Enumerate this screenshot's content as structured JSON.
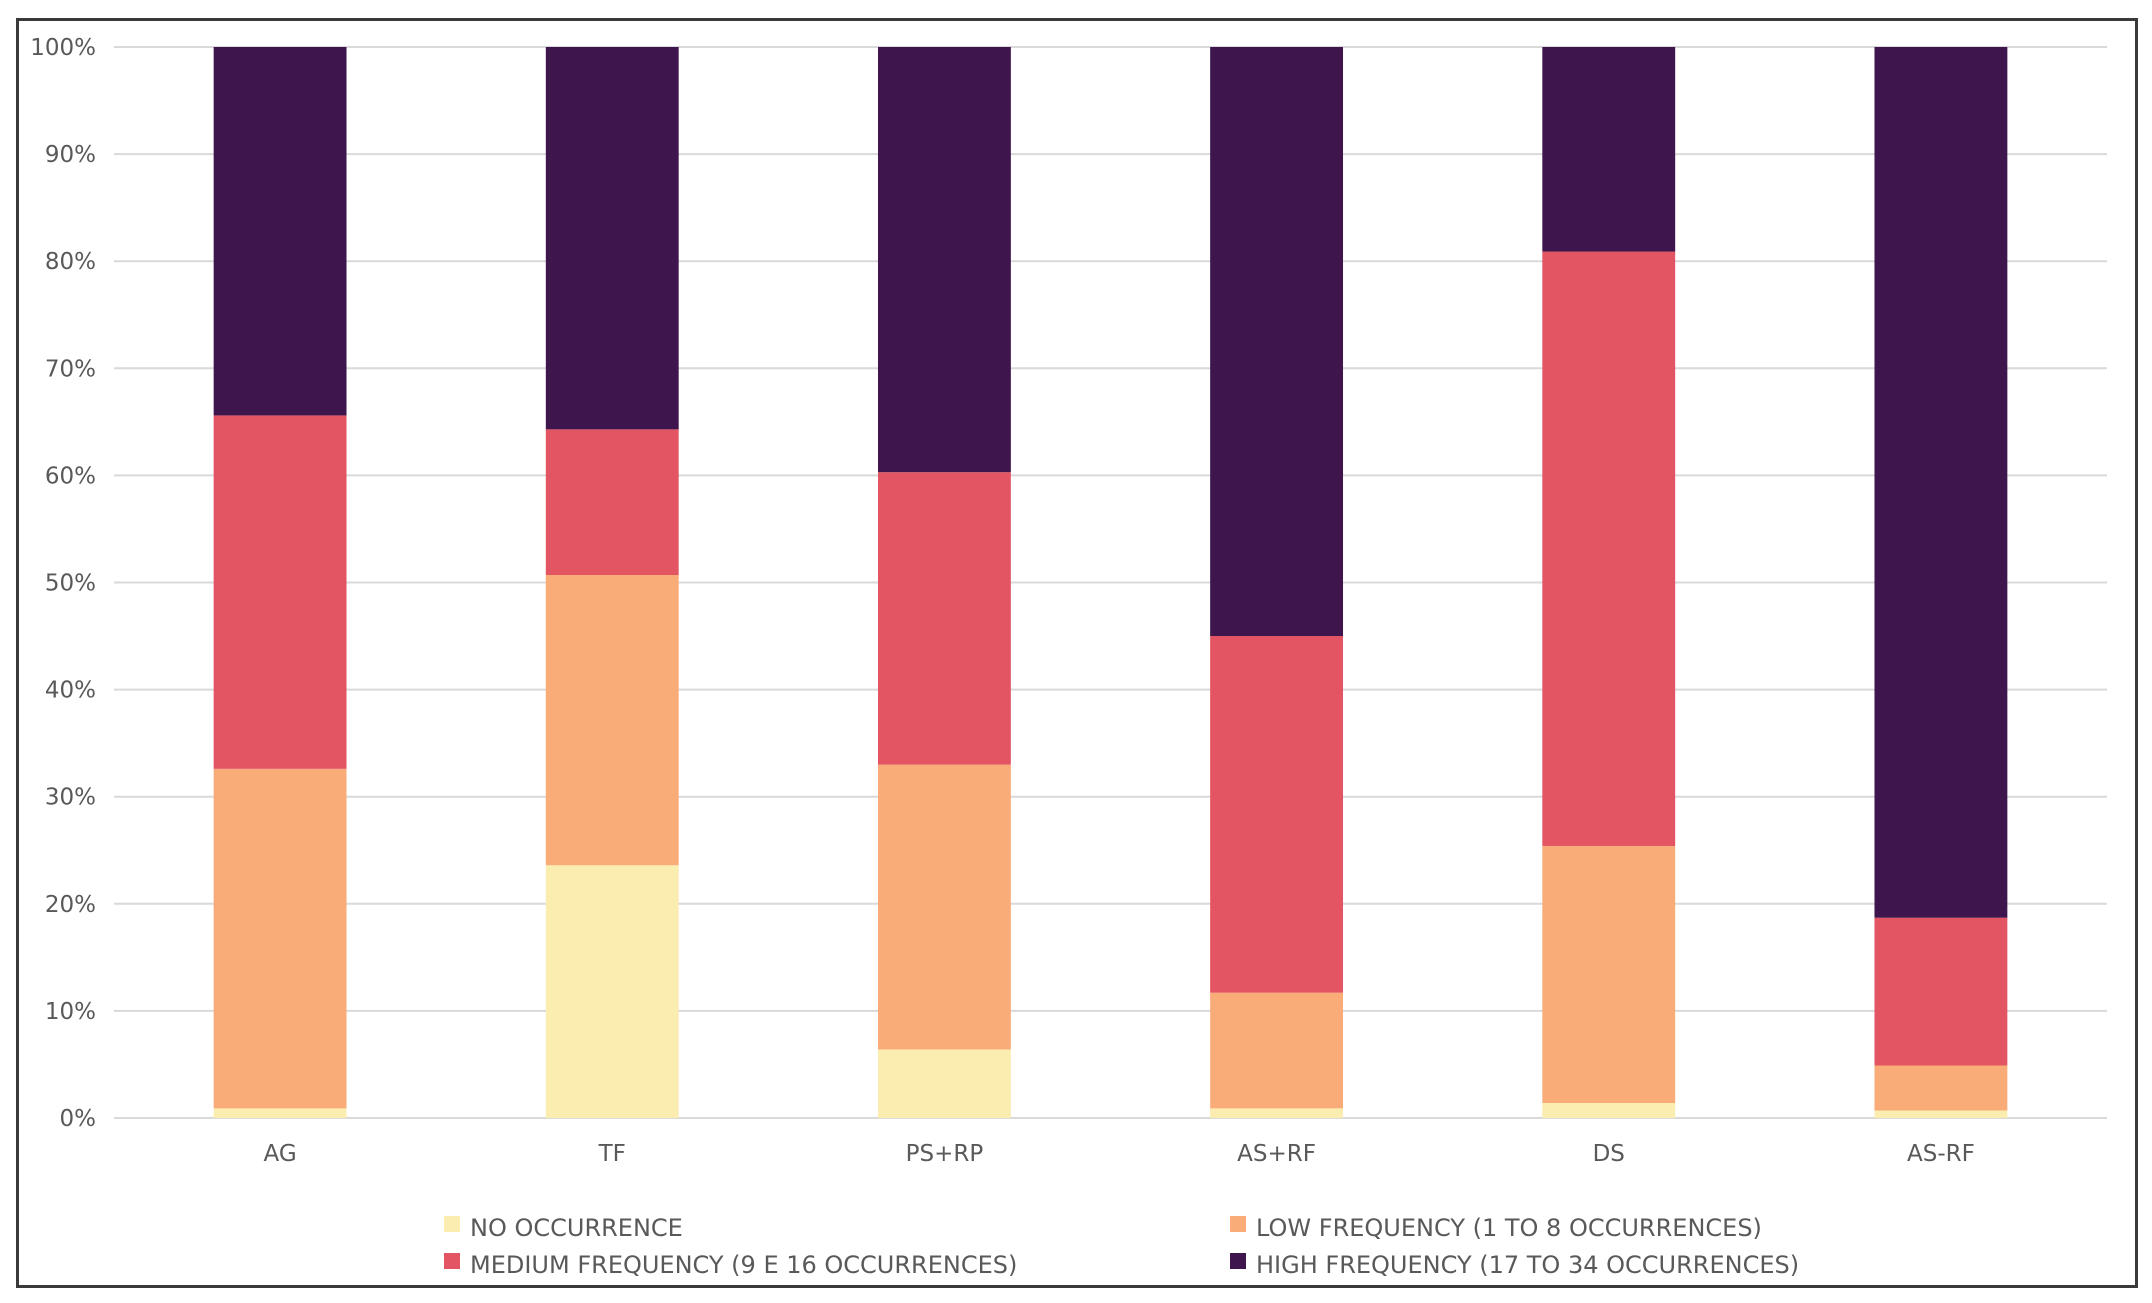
{
  "chart_data": {
    "type": "bar",
    "stacked": true,
    "percent_stacked": true,
    "title": "",
    "xlabel": "",
    "ylabel": "",
    "ylim": [
      0,
      100
    ],
    "yticks": [
      0,
      10,
      20,
      30,
      40,
      50,
      60,
      70,
      80,
      90,
      100
    ],
    "ytick_labels": [
      "0%",
      "10%",
      "20%",
      "30%",
      "40%",
      "50%",
      "60%",
      "70%",
      "80%",
      "90%",
      "100%"
    ],
    "grid": true,
    "legend_position": "bottom",
    "categories": [
      "AG",
      "TF",
      "PS+RP",
      "AS+RF",
      "DS",
      "AS-RF"
    ],
    "series": [
      {
        "name": "NO OCCURRENCE",
        "color": "#FBECB0",
        "values": [
          0.9,
          23.6,
          6.4,
          0.9,
          1.4,
          0.7
        ]
      },
      {
        "name": "LOW FREQUENCY (1 TO 8 OCCURRENCES)",
        "color": "#F9AC77",
        "values": [
          31.7,
          27.1,
          26.6,
          10.8,
          24.0,
          4.2
        ]
      },
      {
        "name": "MEDIUM FREQUENCY (9 E 16 OCCURRENCES)",
        "color": "#E45563",
        "values": [
          33.0,
          13.6,
          27.3,
          33.3,
          55.5,
          13.8
        ]
      },
      {
        "name": "HIGH FREQUENCY (17 TO 34 OCCURRENCES)",
        "color": "#3E154C",
        "values": [
          34.4,
          35.7,
          39.7,
          55.0,
          19.1,
          81.3
        ]
      }
    ]
  }
}
